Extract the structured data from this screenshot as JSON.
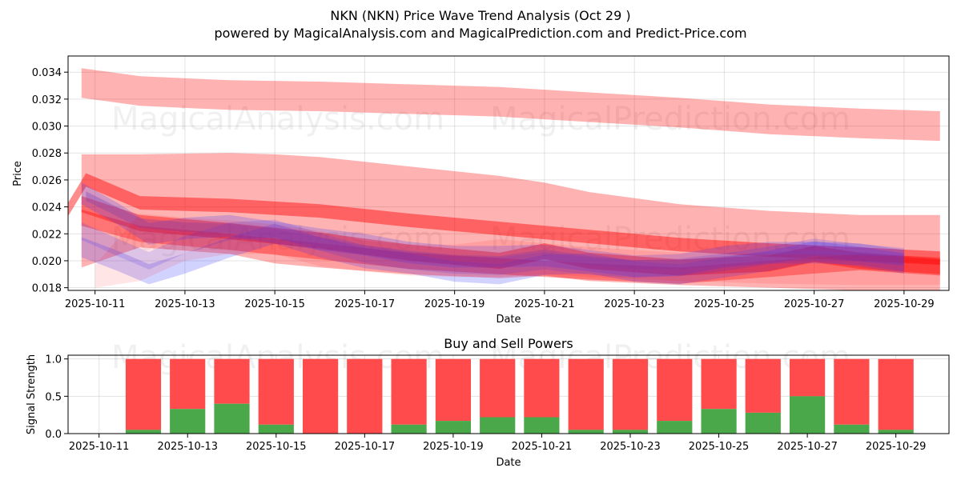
{
  "header": {
    "title": "NKN (NKN) Price Wave Trend Analysis (Oct 29 )",
    "subtitle": "powered by MagicalAnalysis.com and MagicalPrediction.com and Predict-Price.com"
  },
  "watermarks": [
    "MagicalAnalysis.com",
    "MagicalPrediction.com"
  ],
  "colors": {
    "sell": "#ff4b4b",
    "buy": "#4aa84a",
    "red_band": "#ff0000",
    "blue_band": "#3333ff",
    "purple": "#8040b0"
  },
  "chart_data": [
    {
      "type": "area",
      "title": "",
      "xlabel": "Date",
      "ylabel": "Price",
      "ylim": [
        0.0178,
        0.0352
      ],
      "xlim": [
        "2025-10-10.4",
        "2025-10-30"
      ],
      "grid": true,
      "x_ticks": [
        "2025-10-11",
        "2025-10-13",
        "2025-10-15",
        "2025-10-17",
        "2025-10-19",
        "2025-10-21",
        "2025-10-23",
        "2025-10-25",
        "2025-10-27",
        "2025-10-29"
      ],
      "y_ticks": [
        "0.018",
        "0.020",
        "0.022",
        "0.024",
        "0.026",
        "0.028",
        "0.030",
        "0.032",
        "0.034"
      ],
      "bands": [
        {
          "name": "upper red band",
          "color": "red",
          "opacity": 0.3,
          "x": [
            10.7,
            12,
            14,
            16,
            18,
            20,
            22,
            24,
            26,
            28,
            29.8
          ],
          "center": [
            0.0332,
            0.0326,
            0.0323,
            0.0322,
            0.032,
            0.0318,
            0.0314,
            0.031,
            0.0305,
            0.0302,
            0.03
          ],
          "width": 0.0022
        },
        {
          "name": "wide red channel",
          "color": "red",
          "opacity": 0.3,
          "x": [
            10.7,
            12,
            14,
            15,
            16,
            18,
            20,
            21,
            22,
            24,
            26,
            28,
            29.8
          ],
          "upper": [
            0.0279,
            0.0279,
            0.028,
            0.0279,
            0.0277,
            0.027,
            0.0263,
            0.0258,
            0.0251,
            0.0242,
            0.0237,
            0.0234,
            0.0234
          ],
          "lower": [
            0.0195,
            0.021,
            0.0205,
            0.0198,
            0.0195,
            0.019,
            0.0187,
            0.0189,
            0.0185,
            0.0182,
            0.018,
            0.0178,
            0.0178
          ]
        },
        {
          "name": "red trend line 1",
          "color": "red",
          "opacity": 0.45,
          "x": [
            10.4,
            10.8,
            12,
            14,
            16,
            18,
            20,
            22,
            24,
            26,
            28,
            29.8
          ],
          "center": [
            0.0238,
            0.026,
            0.0243,
            0.0241,
            0.0237,
            0.023,
            0.0224,
            0.0218,
            0.0212,
            0.0208,
            0.0205,
            0.0202
          ],
          "width": 0.001
        },
        {
          "name": "red trend line 2",
          "color": "red",
          "opacity": 0.4,
          "x": [
            10.7,
            12,
            14,
            16,
            18,
            20,
            21,
            22,
            24,
            26,
            27,
            28,
            29.8
          ],
          "center": [
            0.0242,
            0.0228,
            0.0222,
            0.0215,
            0.0206,
            0.02,
            0.0207,
            0.02,
            0.0195,
            0.0198,
            0.0205,
            0.02,
            0.0196
          ],
          "width": 0.0012
        },
        {
          "name": "red trend line 3",
          "color": "red",
          "opacity": 0.35,
          "x": [
            10.7,
            12,
            14,
            16,
            18,
            20,
            22,
            24,
            26,
            28,
            29.8
          ],
          "center": [
            0.0232,
            0.022,
            0.0214,
            0.0207,
            0.02,
            0.0196,
            0.0192,
            0.0189,
            0.0194,
            0.0199,
            0.0195
          ],
          "width": 0.0012
        },
        {
          "name": "blue wave 1",
          "color": "blue",
          "opacity": 0.22,
          "x": [
            10.7,
            11.5,
            12.2,
            13,
            14,
            15,
            16,
            17,
            18,
            19,
            20,
            21,
            22,
            23,
            24,
            25,
            26,
            27,
            28,
            29
          ],
          "center": [
            0.025,
            0.0235,
            0.022,
            0.0224,
            0.0226,
            0.0221,
            0.0216,
            0.0212,
            0.0206,
            0.0203,
            0.0203,
            0.0204,
            0.02,
            0.0196,
            0.0197,
            0.0203,
            0.0206,
            0.0206,
            0.0205,
            0.02
          ],
          "width": 0.0016
        },
        {
          "name": "blue wave 2",
          "color": "blue",
          "opacity": 0.22,
          "x": [
            10.7,
            11.5,
            12.2,
            13,
            14,
            15,
            16,
            17,
            18,
            19,
            20,
            21,
            22,
            23,
            24,
            25,
            26,
            27,
            28,
            29
          ],
          "center": [
            0.021,
            0.02,
            0.019,
            0.0198,
            0.021,
            0.022,
            0.021,
            0.0202,
            0.0198,
            0.0192,
            0.019,
            0.0197,
            0.0198,
            0.0192,
            0.019,
            0.0195,
            0.02,
            0.0207,
            0.0203,
            0.0198
          ],
          "width": 0.0015
        },
        {
          "name": "blue wave 3",
          "color": "blue",
          "opacity": 0.18,
          "x": [
            10.7,
            11.5,
            12.2,
            13,
            14,
            15,
            16,
            17,
            18,
            19,
            20,
            21,
            22,
            23,
            24,
            25,
            26,
            27,
            28,
            29
          ],
          "center": [
            0.0222,
            0.021,
            0.02,
            0.0212,
            0.0222,
            0.0224,
            0.0214,
            0.0205,
            0.02,
            0.0197,
            0.0196,
            0.02,
            0.0196,
            0.0194,
            0.0195,
            0.0199,
            0.0204,
            0.021,
            0.0206,
            0.0203
          ],
          "width": 0.0013
        },
        {
          "name": "purple core",
          "color": "purple",
          "opacity": 0.35,
          "x": [
            10.8,
            12,
            13,
            14,
            15,
            16,
            17,
            18,
            19,
            20,
            21,
            22,
            23,
            24,
            25,
            26,
            27,
            28,
            29
          ],
          "center": [
            0.0248,
            0.0228,
            0.0225,
            0.0224,
            0.022,
            0.0214,
            0.0208,
            0.0204,
            0.0201,
            0.02,
            0.0205,
            0.02,
            0.0197,
            0.0197,
            0.02,
            0.0203,
            0.0204,
            0.0203,
            0.02
          ],
          "width": 0.0007
        },
        {
          "name": "faint pink channel",
          "color": "red",
          "opacity": 0.1,
          "x": [
            11,
            12,
            13,
            14,
            15,
            16,
            17,
            18,
            19,
            20,
            21,
            22,
            24,
            26,
            28,
            29.8
          ],
          "upper": [
            0.0197,
            0.0235,
            0.0232,
            0.023,
            0.0227,
            0.0222,
            0.0215,
            0.0212,
            0.0212,
            0.0216,
            0.0213,
            0.021,
            0.0206,
            0.0205,
            0.0204,
            0.0203
          ],
          "lower": [
            0.018,
            0.0185,
            0.02,
            0.0205,
            0.0205,
            0.0196,
            0.0192,
            0.0189,
            0.0188,
            0.0188,
            0.019,
            0.0188,
            0.0185,
            0.0183,
            0.0182,
            0.0182
          ]
        }
      ]
    },
    {
      "type": "bar",
      "title": "Buy and Sell Powers",
      "xlabel": "Date",
      "ylabel": "Signal Strength",
      "ylim": [
        0,
        1.05
      ],
      "grid": true,
      "x_ticks": [
        "2025-10-11",
        "2025-10-13",
        "2025-10-15",
        "2025-10-17",
        "2025-10-19",
        "2025-10-21",
        "2025-10-23",
        "2025-10-25",
        "2025-10-27",
        "2025-10-29"
      ],
      "y_ticks": [
        "0.0",
        "0.5",
        "1.0"
      ],
      "categories": [
        "2025-10-12",
        "2025-10-13",
        "2025-10-14",
        "2025-10-15",
        "2025-10-16",
        "2025-10-17",
        "2025-10-18",
        "2025-10-19",
        "2025-10-20",
        "2025-10-21",
        "2025-10-22",
        "2025-10-23",
        "2025-10-24",
        "2025-10-25",
        "2025-10-26",
        "2025-10-27",
        "2025-10-28",
        "2025-10-29"
      ],
      "series": [
        {
          "name": "Buy",
          "values": [
            0.05,
            0.33,
            0.4,
            0.12,
            0.0,
            0.0,
            0.12,
            0.17,
            0.22,
            0.22,
            0.05,
            0.05,
            0.17,
            0.33,
            0.28,
            0.5,
            0.12,
            0.05
          ]
        },
        {
          "name": "Sell",
          "values": [
            0.95,
            0.67,
            0.6,
            0.88,
            1.0,
            1.0,
            0.88,
            0.83,
            0.78,
            0.78,
            0.95,
            0.95,
            0.83,
            0.67,
            0.72,
            0.5,
            0.88,
            0.95
          ]
        }
      ]
    }
  ]
}
